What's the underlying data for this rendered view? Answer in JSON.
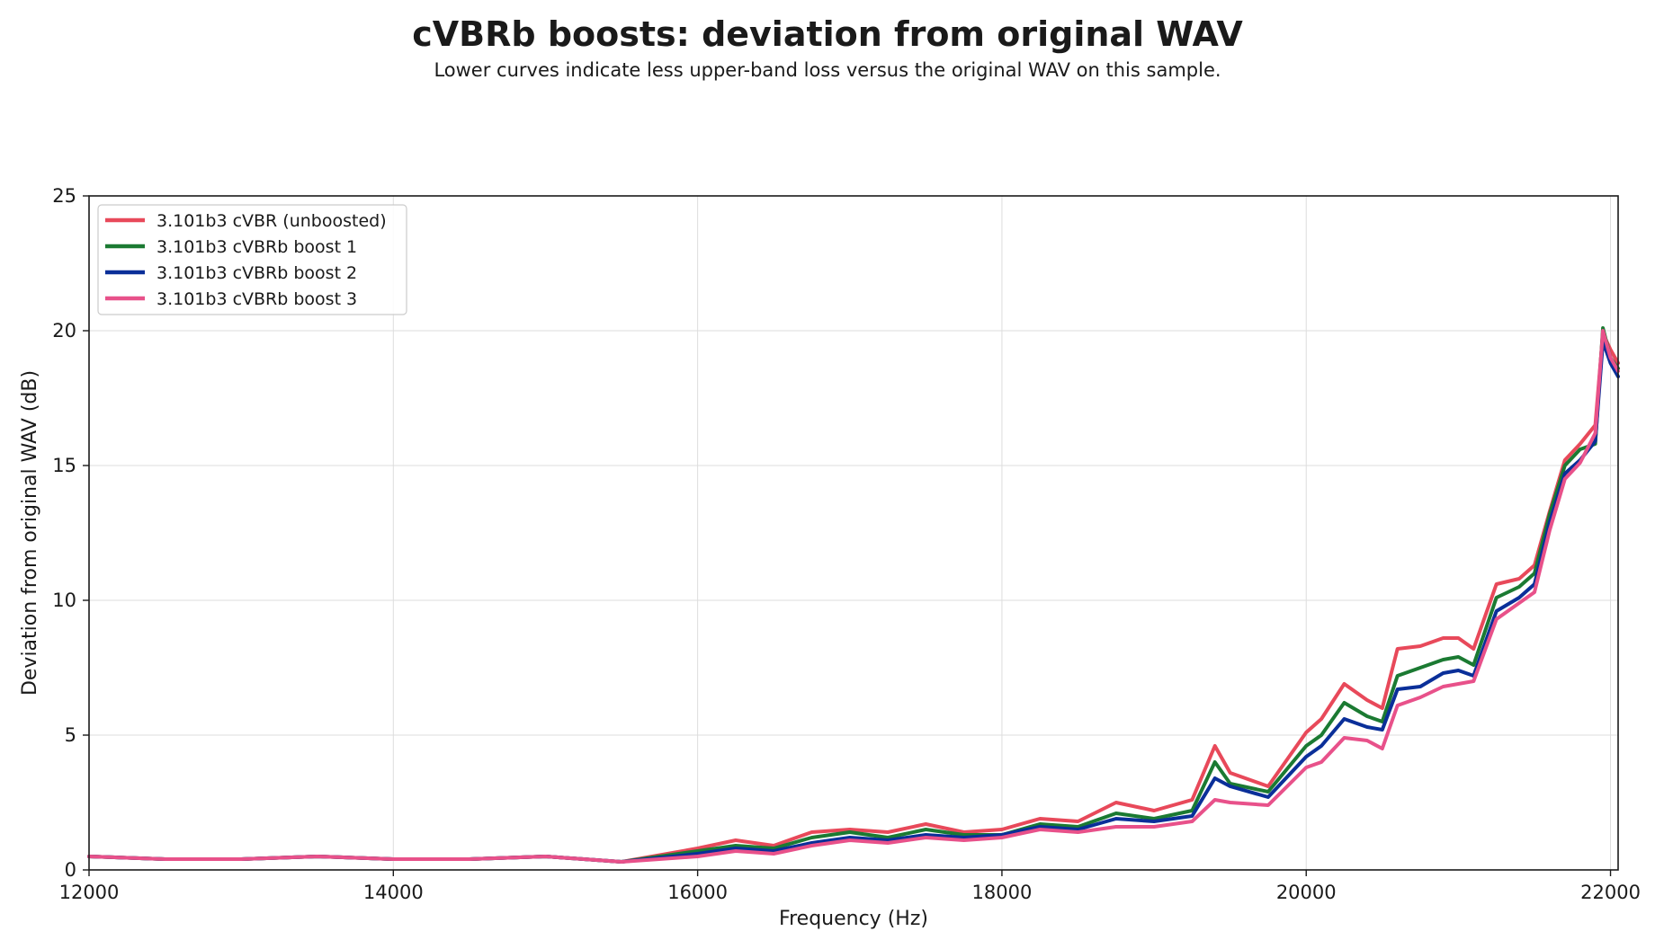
{
  "chart_data": {
    "type": "line",
    "title": "cVBRb boosts: deviation from original WAV",
    "subtitle": "Lower curves indicate less upper-band loss versus the original WAV on this sample.",
    "xlabel": "Frequency (Hz)",
    "ylabel": "Deviation from original WAV (dB)",
    "xlim": [
      12000,
      22050
    ],
    "ylim": [
      0,
      25
    ],
    "xticks": [
      12000,
      14000,
      16000,
      18000,
      20000,
      22000
    ],
    "yticks": [
      0,
      5,
      10,
      15,
      20,
      25
    ],
    "grid": true,
    "legend_position": "upper-left",
    "x": [
      12000,
      12500,
      13000,
      13500,
      14000,
      14500,
      15000,
      15500,
      16000,
      16250,
      16500,
      16750,
      17000,
      17250,
      17500,
      17750,
      18000,
      18250,
      18500,
      18750,
      19000,
      19250,
      19400,
      19500,
      19750,
      20000,
      20100,
      20250,
      20400,
      20500,
      20600,
      20750,
      20900,
      21000,
      21100,
      21250,
      21400,
      21500,
      21600,
      21700,
      21800,
      21900,
      21950,
      22000,
      22050
    ],
    "series": [
      {
        "name": "3.101b3 cVBR (unboosted)",
        "color": "#e8495a",
        "values": [
          0.5,
          0.4,
          0.4,
          0.5,
          0.4,
          0.4,
          0.5,
          0.3,
          0.8,
          1.1,
          0.9,
          1.4,
          1.5,
          1.4,
          1.7,
          1.4,
          1.5,
          1.9,
          1.8,
          2.5,
          2.2,
          2.6,
          4.6,
          3.6,
          3.1,
          5.1,
          5.6,
          6.9,
          6.3,
          6.0,
          8.2,
          8.3,
          8.6,
          8.6,
          8.2,
          10.6,
          10.8,
          11.3,
          13.3,
          15.2,
          15.8,
          16.5,
          19.9,
          19.3,
          18.8
        ]
      },
      {
        "name": "3.101b3 cVBRb boost 1",
        "color": "#1b7a32",
        "values": [
          0.5,
          0.4,
          0.4,
          0.5,
          0.4,
          0.4,
          0.5,
          0.3,
          0.7,
          0.9,
          0.8,
          1.2,
          1.4,
          1.2,
          1.5,
          1.3,
          1.3,
          1.7,
          1.6,
          2.1,
          1.9,
          2.2,
          4.0,
          3.2,
          2.9,
          4.6,
          5.0,
          6.2,
          5.7,
          5.5,
          7.2,
          7.5,
          7.8,
          7.9,
          7.6,
          10.1,
          10.5,
          11.0,
          13.2,
          15.0,
          15.6,
          15.8,
          20.1,
          19.0,
          18.6
        ]
      },
      {
        "name": "3.101b3 cVBRb boost 2",
        "color": "#0a2f99",
        "values": [
          0.5,
          0.4,
          0.4,
          0.5,
          0.4,
          0.4,
          0.5,
          0.3,
          0.6,
          0.8,
          0.7,
          1.0,
          1.2,
          1.1,
          1.3,
          1.2,
          1.3,
          1.6,
          1.5,
          1.9,
          1.8,
          2.0,
          3.4,
          3.1,
          2.7,
          4.2,
          4.6,
          5.6,
          5.3,
          5.2,
          6.7,
          6.8,
          7.3,
          7.4,
          7.2,
          9.6,
          10.1,
          10.6,
          12.9,
          14.7,
          15.2,
          15.9,
          19.6,
          18.8,
          18.3
        ]
      },
      {
        "name": "3.101b3 cVBRb boost 3",
        "color": "#e8518a",
        "values": [
          0.5,
          0.4,
          0.4,
          0.5,
          0.4,
          0.4,
          0.5,
          0.3,
          0.5,
          0.7,
          0.6,
          0.9,
          1.1,
          1.0,
          1.2,
          1.1,
          1.2,
          1.5,
          1.4,
          1.6,
          1.6,
          1.8,
          2.6,
          2.5,
          2.4,
          3.8,
          4.0,
          4.9,
          4.8,
          4.5,
          6.1,
          6.4,
          6.8,
          6.9,
          7.0,
          9.3,
          9.9,
          10.3,
          12.6,
          14.5,
          15.1,
          16.2,
          20.0,
          19.0,
          18.5
        ]
      }
    ]
  }
}
